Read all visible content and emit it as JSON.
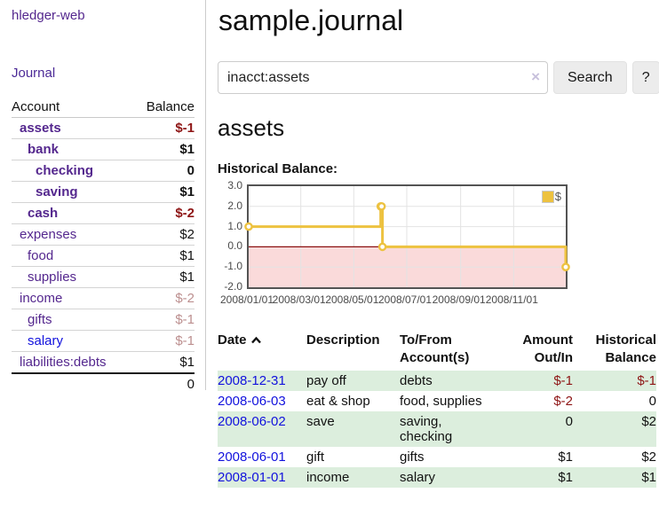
{
  "colors": {
    "purple_link": "#54278e",
    "blue_link": "#1212dd",
    "negative_strong": "#8e1515",
    "negative_faded": "#bc8f8f",
    "row_stripe_green": "#dceedd",
    "chart_line": "#edc240",
    "chart_negative_fill": "#fadada",
    "chart_zero_line": "#8b1111",
    "chart_border": "#545454",
    "button_bg": "#ececec"
  },
  "sidebar": {
    "app_title": "hledger-web",
    "journal_link": "Journal",
    "accounts_table": {
      "headers": {
        "account": "Account",
        "balance": "Balance"
      },
      "rows": [
        {
          "name": "assets",
          "balance": "$-1",
          "indent": 0,
          "bold": true,
          "link_color": "purple",
          "balance_class": "neg-strong"
        },
        {
          "name": "bank",
          "balance": "$1",
          "indent": 1,
          "bold": true,
          "link_color": "purple",
          "balance_class": ""
        },
        {
          "name": "checking",
          "balance": "0",
          "indent": 2,
          "bold": true,
          "link_color": "purple",
          "balance_class": ""
        },
        {
          "name": "saving",
          "balance": "$1",
          "indent": 2,
          "bold": true,
          "link_color": "purple",
          "balance_class": ""
        },
        {
          "name": "cash",
          "balance": "$-2",
          "indent": 1,
          "bold": true,
          "link_color": "purple",
          "balance_class": "neg-strong"
        },
        {
          "name": "expenses",
          "balance": "$2",
          "indent": 0,
          "bold": false,
          "link_color": "purple",
          "balance_class": ""
        },
        {
          "name": "food",
          "balance": "$1",
          "indent": 1,
          "bold": false,
          "link_color": "purple",
          "balance_class": ""
        },
        {
          "name": "supplies",
          "balance": "$1",
          "indent": 1,
          "bold": false,
          "link_color": "purple",
          "balance_class": ""
        },
        {
          "name": "income",
          "balance": "$-2",
          "indent": 0,
          "bold": false,
          "link_color": "purple",
          "balance_class": "neg-faded"
        },
        {
          "name": "gifts",
          "balance": "$-1",
          "indent": 1,
          "bold": false,
          "link_color": "purple",
          "balance_class": "neg-faded"
        },
        {
          "name": "salary",
          "balance": "$-1",
          "indent": 1,
          "bold": false,
          "link_color": "blue",
          "balance_class": "neg-faded"
        },
        {
          "name": "liabilities:debts",
          "balance": "$1",
          "indent": 0,
          "bold": false,
          "link_color": "purple",
          "balance_class": ""
        }
      ],
      "total": "0"
    }
  },
  "main": {
    "title": "sample.journal",
    "search": {
      "value": "inacct:assets",
      "clear_icon": "×",
      "search_button": "Search",
      "help_button": "?"
    },
    "account_heading": "assets",
    "chart_label": "Historical Balance:",
    "transactions": {
      "headers": {
        "date": "Date",
        "sort_icon": "chevron-up",
        "description": "Description",
        "accounts": "To/From Account(s)",
        "amount": "Amount Out/In",
        "balance": "Historical Balance"
      },
      "rows": [
        {
          "date": "2008-12-31",
          "description": "pay off",
          "accounts": "debts",
          "amount": "$-1",
          "amount_negative": true,
          "balance": "$-1",
          "balance_negative": true,
          "shaded": true
        },
        {
          "date": "2008-06-03",
          "description": "eat & shop",
          "accounts": "food, supplies",
          "amount": "$-2",
          "amount_negative": true,
          "balance": "0",
          "balance_negative": false,
          "shaded": false
        },
        {
          "date": "2008-06-02",
          "description": "save",
          "accounts": "saving, checking",
          "amount": "0",
          "amount_negative": false,
          "balance": "$2",
          "balance_negative": false,
          "shaded": true
        },
        {
          "date": "2008-06-01",
          "description": "gift",
          "accounts": "gifts",
          "amount": "$1",
          "amount_negative": false,
          "balance": "$2",
          "balance_negative": false,
          "shaded": false
        },
        {
          "date": "2008-01-01",
          "description": "income",
          "accounts": "salary",
          "amount": "$1",
          "amount_negative": false,
          "balance": "$1",
          "balance_negative": false,
          "shaded": true
        }
      ]
    }
  },
  "chart_data": {
    "type": "line",
    "title": "Historical Balance",
    "step": true,
    "series": [
      {
        "name": "$",
        "color": "#edc240",
        "points": [
          {
            "date": "2008-01-01",
            "value": 1
          },
          {
            "date": "2008-06-01",
            "value": 2
          },
          {
            "date": "2008-06-02",
            "value": 2
          },
          {
            "date": "2008-06-03",
            "value": 0
          },
          {
            "date": "2008-12-31",
            "value": -1
          }
        ]
      }
    ],
    "x_start_date": "2008-01-01",
    "x_end_date": "2008-12-31",
    "x_ticks": [
      "2008/01/01",
      "2008/03/01",
      "2008/05/01",
      "2008/07/01",
      "2008/09/01",
      "2008/11/01"
    ],
    "y_ticks": [
      "3.0",
      "2.0",
      "1.0",
      "0.0",
      "-1.0",
      "-2.0"
    ],
    "ylim": [
      -2,
      3
    ],
    "grid": true,
    "legend": {
      "label": "$",
      "position": "top-right"
    }
  }
}
